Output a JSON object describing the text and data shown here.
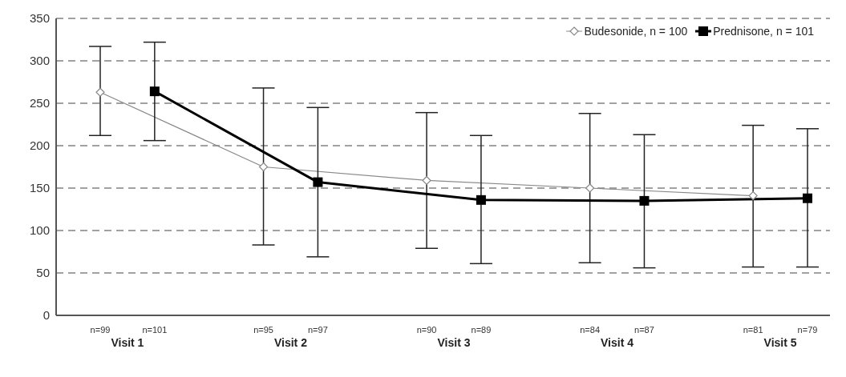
{
  "chart_data": {
    "type": "line",
    "categories": [
      "n=99",
      "n=101",
      null,
      "n=95",
      "n=97",
      null,
      "n=90",
      "n=89",
      null,
      "n=84",
      "n=87",
      null,
      "n=81",
      "n=79"
    ],
    "annotations": [
      "Visit 1",
      "Visit 2",
      "Visit 3",
      "Visit 4",
      "Visit 5"
    ],
    "series": [
      {
        "name": "Budesonide, n = 100",
        "color": "#888888",
        "marker": "diamond",
        "values": [
          263,
          null,
          null,
          175,
          null,
          null,
          159,
          null,
          null,
          150,
          null,
          null,
          141,
          null
        ],
        "errors": [
          [
            212,
            317
          ],
          null,
          null,
          [
            83,
            268
          ],
          null,
          null,
          [
            79,
            239
          ],
          null,
          null,
          [
            62,
            238
          ],
          null,
          null,
          [
            57,
            224
          ],
          null
        ]
      },
      {
        "name": "Prednisone, n = 101",
        "color": "#000000",
        "marker": "square",
        "values": [
          null,
          264,
          null,
          null,
          157,
          null,
          null,
          136,
          null,
          null,
          135,
          null,
          null,
          138
        ],
        "errors": [
          null,
          [
            206,
            322
          ],
          null,
          null,
          [
            69,
            245
          ],
          null,
          null,
          [
            61,
            212
          ],
          null,
          null,
          [
            56,
            213
          ],
          null,
          null,
          [
            57,
            220
          ]
        ]
      }
    ],
    "ylim": [
      0,
      350
    ],
    "yticks": [
      0,
      50,
      100,
      150,
      200,
      250,
      300,
      350
    ],
    "grid": "y",
    "legend": "top right",
    "line_style": "solid"
  }
}
